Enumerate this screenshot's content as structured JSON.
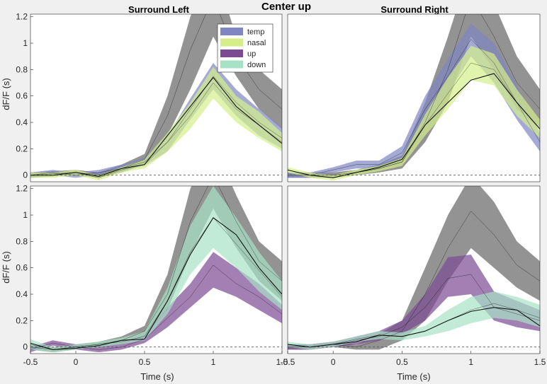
{
  "figure": {
    "suptitle": "Center up",
    "col_titles": [
      "Surround Left",
      "Surround Right"
    ],
    "ylabel": "dF/F (s)",
    "xlabel": "Time (s)"
  },
  "colors": {
    "gray": "#808080",
    "temp": "#7f86c2",
    "nasal": "#d4ef8a",
    "up": "#7b4a93",
    "down": "#a8e2c6",
    "line": "#000000",
    "panel_bg": "#ffffff",
    "fig_bg": "#f0f0f0"
  },
  "chart_data": [
    {
      "type": "area",
      "panel": "top-left",
      "title": "Surround Left",
      "xlim": [
        -0.33,
        1.5
      ],
      "ylim": [
        -0.05,
        1.22
      ],
      "yticks": [
        "0",
        "0.2",
        "0.4",
        "0.6",
        "0.8",
        "1",
        "1.2"
      ],
      "ytick_values": [
        0,
        0.2,
        0.4,
        0.6,
        0.8,
        1,
        1.2
      ],
      "xticks": [],
      "legend": {
        "position": "top-right",
        "entries": [
          "temp",
          "nasal",
          "up",
          "down"
        ]
      },
      "x": [
        -0.333,
        -0.167,
        0,
        0.167,
        0.333,
        0.5,
        0.667,
        0.833,
        1,
        1.167,
        1.333,
        1.5
      ],
      "series": [
        {
          "name": "gray",
          "color_key": "gray",
          "mean": [
            0,
            0.01,
            0.02,
            0,
            0.05,
            0.12,
            0.45,
            0.95,
            1.35,
            0.9,
            0.65,
            0.5
          ],
          "lower": [
            -0.02,
            -0.01,
            0,
            -0.02,
            0.02,
            0.08,
            0.3,
            0.65,
            1.05,
            0.75,
            0.5,
            0.35
          ],
          "upper": [
            0.02,
            0.03,
            0.04,
            0.02,
            0.08,
            0.16,
            0.6,
            1.2,
            1.6,
            1.05,
            0.8,
            0.65
          ]
        },
        {
          "name": "temp",
          "color_key": "temp",
          "mean": [
            0,
            0.02,
            0,
            0.02,
            0.05,
            0.1,
            0.25,
            0.5,
            0.75,
            0.55,
            0.4,
            0.28
          ],
          "lower": [
            -0.02,
            0,
            -0.02,
            0,
            0.03,
            0.07,
            0.18,
            0.42,
            0.65,
            0.45,
            0.3,
            0.2
          ],
          "upper": [
            0.02,
            0.04,
            0.02,
            0.04,
            0.08,
            0.13,
            0.3,
            0.58,
            0.85,
            0.65,
            0.5,
            0.36
          ]
        },
        {
          "name": "nasal",
          "color_key": "nasal",
          "mean": [
            0,
            0,
            0.02,
            -0.02,
            0.04,
            0.08,
            0.25,
            0.45,
            0.7,
            0.5,
            0.38,
            0.25
          ],
          "lower": [
            -0.02,
            -0.02,
            0,
            -0.04,
            0.02,
            0.05,
            0.18,
            0.35,
            0.58,
            0.4,
            0.28,
            0.18
          ],
          "upper": [
            0.02,
            0.02,
            0.04,
            0,
            0.06,
            0.12,
            0.32,
            0.55,
            0.82,
            0.6,
            0.48,
            0.32
          ]
        }
      ],
      "mean_line": [
        0,
        0,
        0.02,
        -0.01,
        0.05,
        0.08,
        0.3,
        0.52,
        0.74,
        0.52,
        0.38,
        0.24
      ]
    },
    {
      "type": "area",
      "panel": "top-right",
      "title": "Surround Right",
      "xlim": [
        -0.33,
        1.5
      ],
      "ylim": [
        -0.05,
        1.22
      ],
      "yticks": [],
      "xticks": [],
      "x": [
        -0.333,
        -0.167,
        0,
        0.167,
        0.333,
        0.5,
        0.667,
        0.833,
        1,
        1.167,
        1.333,
        1.5
      ],
      "series": [
        {
          "name": "gray",
          "color_key": "gray",
          "mean": [
            0,
            0,
            0,
            0.02,
            0.05,
            0.1,
            0.4,
            0.8,
            1.35,
            1.05,
            0.7,
            0.5
          ],
          "lower": [
            -0.02,
            -0.02,
            -0.02,
            0,
            0.02,
            0.05,
            0.25,
            0.55,
            1.05,
            0.8,
            0.5,
            0.35
          ],
          "upper": [
            0.02,
            0.02,
            0.02,
            0.04,
            0.08,
            0.15,
            0.55,
            1.05,
            1.6,
            1.3,
            0.9,
            0.65
          ]
        },
        {
          "name": "temp",
          "color_key": "temp",
          "mean": [
            0,
            0,
            0.04,
            0.08,
            0.08,
            0.17,
            0.5,
            0.75,
            1.03,
            0.85,
            0.55,
            0.25
          ],
          "lower": [
            -0.02,
            -0.02,
            0.02,
            0.05,
            0.05,
            0.12,
            0.4,
            0.62,
            0.9,
            0.7,
            0.42,
            0.18
          ],
          "upper": [
            0.02,
            0.02,
            0.06,
            0.11,
            0.11,
            0.22,
            0.6,
            0.88,
            1.15,
            1.0,
            0.68,
            0.32
          ]
        },
        {
          "name": "nasal",
          "color_key": "nasal",
          "mean": [
            0.04,
            0,
            -0.02,
            0.02,
            0.05,
            0.1,
            0.38,
            0.62,
            0.85,
            0.8,
            0.55,
            0.35
          ],
          "lower": [
            0.02,
            -0.02,
            -0.04,
            0,
            0.03,
            0.07,
            0.3,
            0.5,
            0.72,
            0.68,
            0.45,
            0.28
          ],
          "upper": [
            0.06,
            0.02,
            0,
            0.04,
            0.07,
            0.13,
            0.46,
            0.74,
            0.98,
            0.92,
            0.65,
            0.42
          ]
        }
      ],
      "mean_line": [
        0.04,
        0,
        -0.02,
        0.02,
        0.06,
        0.12,
        0.38,
        0.55,
        0.72,
        0.77,
        0.55,
        0.35
      ]
    },
    {
      "type": "area",
      "panel": "bottom-left",
      "title": "",
      "xlim": [
        -0.33,
        1.5
      ],
      "ylim": [
        -0.05,
        1.22
      ],
      "yticks": [
        "0",
        "0.2",
        "0.4",
        "0.6",
        "0.8",
        "1",
        "1.2"
      ],
      "ytick_values": [
        0,
        0.2,
        0.4,
        0.6,
        0.8,
        1,
        1.2
      ],
      "xticks": [
        "-0.5",
        "0",
        "0.5",
        "1",
        "1.5"
      ],
      "xtick_values": [
        -0.5,
        0,
        0.5,
        1,
        1.5
      ],
      "xlabel": "Time (s)",
      "x": [
        -0.333,
        -0.167,
        0,
        0.167,
        0.333,
        0.5,
        0.667,
        0.833,
        1,
        1.167,
        1.333,
        1.5
      ],
      "series": [
        {
          "name": "gray",
          "color_key": "gray",
          "mean": [
            0,
            -0.02,
            0,
            0.02,
            0.05,
            0.12,
            0.4,
            0.95,
            1.3,
            0.95,
            0.65,
            0.5
          ],
          "lower": [
            -0.02,
            -0.04,
            -0.02,
            0,
            0.02,
            0.08,
            0.28,
            0.7,
            1.05,
            0.75,
            0.5,
            0.35
          ],
          "upper": [
            0.02,
            0,
            0.02,
            0.04,
            0.08,
            0.16,
            0.55,
            1.2,
            1.55,
            1.15,
            0.8,
            0.65
          ]
        },
        {
          "name": "up",
          "color_key": "up",
          "mean": [
            -0.02,
            0.03,
            0,
            -0.02,
            0,
            0.06,
            0.22,
            0.38,
            0.62,
            0.48,
            0.38,
            0.25
          ],
          "lower": [
            -0.04,
            0.01,
            -0.02,
            -0.04,
            -0.02,
            0.03,
            0.15,
            0.3,
            0.45,
            0.38,
            0.28,
            0.18
          ],
          "upper": [
            0,
            0.05,
            0.02,
            0,
            0.03,
            0.09,
            0.3,
            0.48,
            0.72,
            0.6,
            0.48,
            0.32
          ]
        },
        {
          "name": "down",
          "color_key": "down",
          "mean": [
            0.02,
            -0.02,
            0,
            0.02,
            0.04,
            0.08,
            0.35,
            0.72,
            0.98,
            0.78,
            0.58,
            0.38
          ],
          "lower": [
            -0.02,
            -0.04,
            -0.02,
            0,
            0.02,
            0.05,
            0.25,
            0.55,
            0.75,
            0.6,
            0.42,
            0.28
          ],
          "upper": [
            0.06,
            0,
            0.02,
            0.04,
            0.07,
            0.12,
            0.45,
            0.92,
            1.22,
            0.98,
            0.72,
            0.5
          ]
        }
      ],
      "mean_line": [
        0.03,
        -0.02,
        -0.01,
        0.01,
        0.05,
        0.06,
        0.35,
        0.7,
        0.98,
        0.85,
        0.6,
        0.4
      ]
    },
    {
      "type": "area",
      "panel": "bottom-right",
      "title": "",
      "xlim": [
        -0.33,
        1.5
      ],
      "ylim": [
        -0.05,
        1.22
      ],
      "yticks": [],
      "xticks": [
        "-0.5",
        "0",
        "0.5",
        "1",
        "1.5"
      ],
      "xtick_values": [
        -0.5,
        0,
        0.5,
        1,
        1.5
      ],
      "xlabel": "Time (s)",
      "x": [
        -0.333,
        -0.167,
        0,
        0.167,
        0.333,
        0.5,
        0.667,
        0.833,
        1,
        1.167,
        1.333,
        1.5
      ],
      "series": [
        {
          "name": "gray",
          "color_key": "gray",
          "mean": [
            0,
            0,
            0.02,
            0,
            0.05,
            0.12,
            0.4,
            0.75,
            1.03,
            0.85,
            0.62,
            0.5
          ],
          "lower": [
            -0.02,
            -0.02,
            0,
            -0.02,
            -0.02,
            0.05,
            0.2,
            0.5,
            0.75,
            0.6,
            0.45,
            0.35
          ],
          "upper": [
            0.02,
            0.02,
            0.04,
            0.02,
            0.1,
            0.2,
            0.6,
            1.0,
            1.3,
            1.1,
            0.8,
            0.65
          ]
        },
        {
          "name": "up",
          "color_key": "up",
          "mean": [
            0,
            0,
            0.02,
            0.05,
            0.08,
            0.15,
            0.3,
            0.52,
            0.55,
            0.3,
            0.25,
            0.2
          ],
          "lower": [
            -0.02,
            -0.02,
            0,
            0.02,
            0.05,
            0.1,
            0.2,
            0.38,
            0.4,
            0.2,
            0.15,
            0.12
          ],
          "upper": [
            0.02,
            0.02,
            0.04,
            0.08,
            0.12,
            0.2,
            0.4,
            0.68,
            0.7,
            0.42,
            0.35,
            0.28
          ]
        },
        {
          "name": "down",
          "color_key": "down",
          "mean": [
            0.02,
            0,
            0.02,
            0.06,
            0.09,
            0.08,
            0.12,
            0.2,
            0.28,
            0.33,
            0.28,
            0.22
          ],
          "lower": [
            0,
            -0.02,
            0,
            0.04,
            0.06,
            0.05,
            0.08,
            0.12,
            0.18,
            0.22,
            0.2,
            0.15
          ],
          "upper": [
            0.04,
            0.02,
            0.04,
            0.08,
            0.12,
            0.11,
            0.16,
            0.28,
            0.38,
            0.42,
            0.38,
            0.32
          ]
        }
      ],
      "mean_line": [
        0.02,
        0,
        0.02,
        0.04,
        0.09,
        0.08,
        0.12,
        0.2,
        0.27,
        0.3,
        0.28,
        0.16
      ]
    }
  ]
}
